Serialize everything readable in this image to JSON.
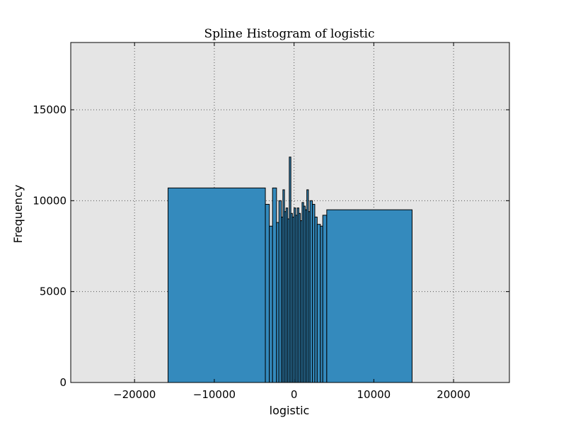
{
  "chart_data": {
    "type": "bar",
    "title": "Spline Histogram of logistic",
    "xlabel": "logistic",
    "ylabel": "Frequency",
    "xlim": [
      -28000,
      27000
    ],
    "ylim": [
      0,
      18700
    ],
    "xticks": [
      -20000,
      -10000,
      0,
      10000,
      20000
    ],
    "xtick_labels": [
      "−20000",
      "−10000",
      "0",
      "10000",
      "20000"
    ],
    "yticks": [
      0,
      5000,
      10000,
      15000
    ],
    "ytick_labels": [
      "0",
      "5000",
      "10000",
      "15000"
    ],
    "grid": true,
    "colors": {
      "bar_fill": "#348abd",
      "bar_edge": "#000000",
      "plot_bg": "#e5e5e5"
    },
    "bins": [
      {
        "x0": -15800,
        "x1": -3600,
        "y": 10700
      },
      {
        "x0": -3600,
        "x1": -3100,
        "y": 9800
      },
      {
        "x0": -3100,
        "x1": -2700,
        "y": 8600
      },
      {
        "x0": -2700,
        "x1": -2200,
        "y": 10700
      },
      {
        "x0": -2200,
        "x1": -1900,
        "y": 8800
      },
      {
        "x0": -1900,
        "x1": -1600,
        "y": 10000
      },
      {
        "x0": -1600,
        "x1": -1400,
        "y": 9100
      },
      {
        "x0": -1400,
        "x1": -1200,
        "y": 10600
      },
      {
        "x0": -1200,
        "x1": -1000,
        "y": 9400
      },
      {
        "x0": -1000,
        "x1": -800,
        "y": 9600
      },
      {
        "x0": -800,
        "x1": -600,
        "y": 9000
      },
      {
        "x0": -600,
        "x1": -400,
        "y": 12400
      },
      {
        "x0": -400,
        "x1": -200,
        "y": 9300
      },
      {
        "x0": -200,
        "x1": 0,
        "y": 9100
      },
      {
        "x0": 0,
        "x1": 200,
        "y": 9600
      },
      {
        "x0": 200,
        "x1": 400,
        "y": 9200
      },
      {
        "x0": 400,
        "x1": 600,
        "y": 9600
      },
      {
        "x0": 600,
        "x1": 800,
        "y": 9300
      },
      {
        "x0": 800,
        "x1": 1000,
        "y": 8900
      },
      {
        "x0": 1000,
        "x1": 1200,
        "y": 9900
      },
      {
        "x0": 1200,
        "x1": 1400,
        "y": 9700
      },
      {
        "x0": 1400,
        "x1": 1600,
        "y": 9500
      },
      {
        "x0": 1600,
        "x1": 1800,
        "y": 10600
      },
      {
        "x0": 1800,
        "x1": 2000,
        "y": 9400
      },
      {
        "x0": 2000,
        "x1": 2300,
        "y": 10000
      },
      {
        "x0": 2300,
        "x1": 2600,
        "y": 9800
      },
      {
        "x0": 2600,
        "x1": 2900,
        "y": 9100
      },
      {
        "x0": 2900,
        "x1": 3300,
        "y": 8700
      },
      {
        "x0": 3300,
        "x1": 3600,
        "y": 8600
      },
      {
        "x0": 3600,
        "x1": 4100,
        "y": 9200
      },
      {
        "x0": 4100,
        "x1": 14800,
        "y": 9500
      }
    ]
  }
}
